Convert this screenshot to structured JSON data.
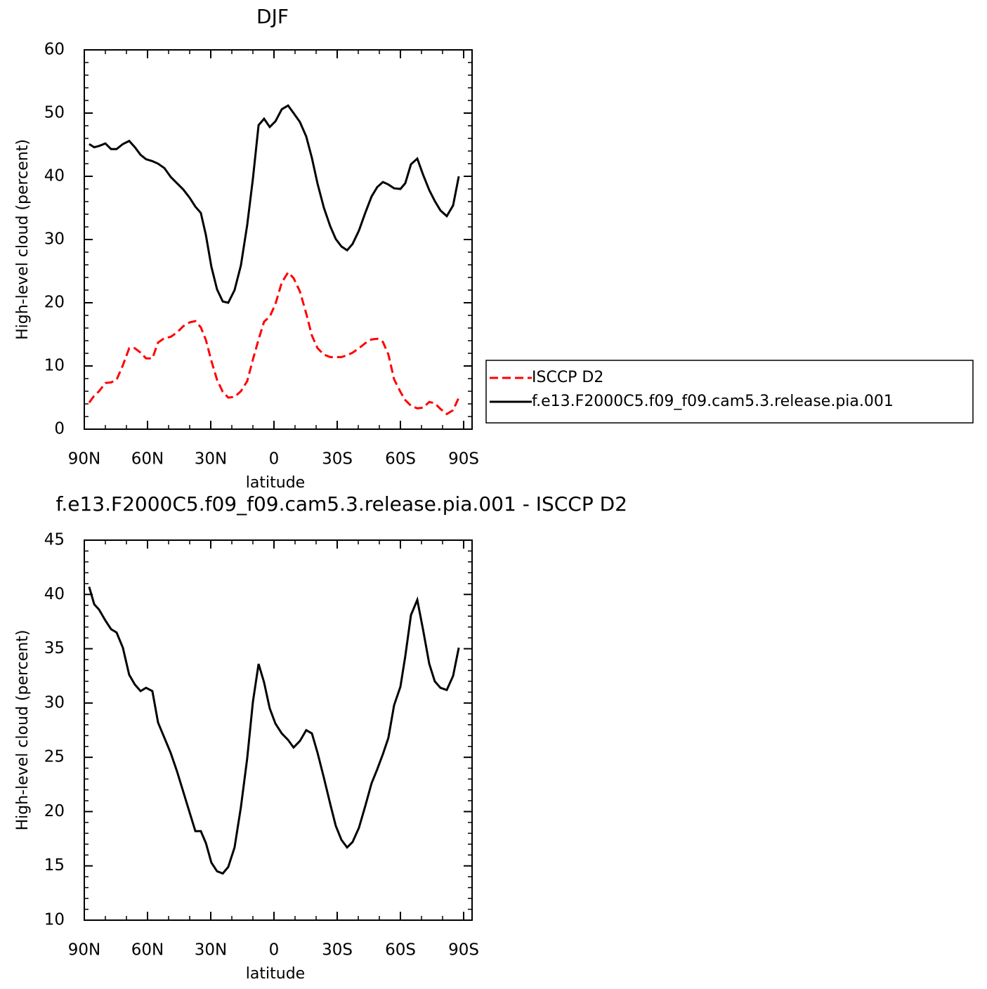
{
  "chart_data": [
    {
      "type": "line",
      "title": "DJF",
      "xlabel": "latitude",
      "ylabel": "High-level cloud (percent)",
      "x": [
        87.7,
        85.3,
        83,
        80,
        77.3,
        74.7,
        71.7,
        68.7,
        66,
        63.3,
        60.7,
        57.7,
        55,
        52,
        49,
        46,
        43,
        40,
        37.3,
        34.7,
        32.3,
        29.7,
        27,
        24.3,
        21.7,
        18.7,
        15.7,
        12.7,
        10,
        7.3,
        4.7,
        2,
        -0.7,
        -3.7,
        -6.7,
        -9.3,
        -12.3,
        -15.3,
        -18,
        -20.7,
        -23.7,
        -26.7,
        -29.3,
        -32,
        -34.7,
        -37.3,
        -40.3,
        -43.3,
        -46.3,
        -49,
        -51.7,
        -54.3,
        -57,
        -60,
        -62.3,
        -65,
        -68,
        -70.7,
        -73.7,
        -76.3,
        -79,
        -82,
        -85,
        -87.7
      ],
      "series": [
        {
          "name": "ISCCP D2",
          "color": "#ff0000",
          "dash": "dashed",
          "values": [
            4.2,
            5.3,
            6,
            7.3,
            7.4,
            7.8,
            10.1,
            12.8,
            12.8,
            12.1,
            11.2,
            11.2,
            13.7,
            14.4,
            14.6,
            15.3,
            16.3,
            16.9,
            17.1,
            16.1,
            14.1,
            10.8,
            7.8,
            5.9,
            5,
            5.1,
            6,
            7.6,
            11,
            14.2,
            17,
            17.8,
            19.8,
            23.2,
            24.8,
            23.9,
            21.8,
            18.3,
            14.8,
            12.8,
            11.8,
            11.4,
            11.4,
            11.4,
            11.7,
            12.1,
            12.8,
            13.6,
            14.2,
            14.3,
            13.8,
            11.8,
            7.9,
            5.9,
            4.6,
            3.7,
            3.3,
            3.4,
            4.3,
            4.1,
            3.2,
            2.4,
            3,
            5
          ]
        },
        {
          "name": "f.e13.F2000C5.f09_f09.cam5.3.release.pia.001",
          "color": "#000000",
          "dash": "solid",
          "values": [
            45.1,
            44.6,
            44.8,
            45.2,
            44.3,
            44.3,
            45.1,
            45.6,
            44.6,
            43.4,
            42.7,
            42.4,
            42,
            41.3,
            39.9,
            38.9,
            37.9,
            36.6,
            35.2,
            34.2,
            30.7,
            25.7,
            22.1,
            20.2,
            20,
            22,
            25.9,
            32.3,
            39.6,
            48.1,
            49.1,
            47.8,
            48.7,
            50.6,
            51.2,
            50,
            48.6,
            46.3,
            42.9,
            38.8,
            35,
            32.1,
            30.1,
            28.9,
            28.3,
            29.3,
            31.4,
            34.2,
            36.8,
            38.3,
            39.1,
            38.7,
            38.1,
            38,
            38.9,
            41.9,
            42.8,
            40.3,
            37.8,
            36.1,
            34.6,
            33.7,
            35.4,
            40
          ]
        }
      ],
      "xlim": [
        90,
        -94
      ],
      "ylim": [
        0,
        60
      ],
      "xticks": [
        {
          "value": 90,
          "label": "90N"
        },
        {
          "value": 60,
          "label": "60N"
        },
        {
          "value": 30,
          "label": "30N"
        },
        0,
        {
          "value": -30,
          "label": "30S"
        },
        {
          "value": -60,
          "label": "60S"
        },
        {
          "value": -90,
          "label": "90S"
        }
      ],
      "yticks": [
        0,
        10,
        20,
        30,
        40,
        50,
        60
      ],
      "xminorticks": [
        80,
        70,
        50,
        40,
        20,
        10,
        -10,
        -20,
        -40,
        -50,
        -70,
        -80
      ],
      "yminorticks": [
        2,
        4,
        6,
        8,
        12,
        14,
        16,
        18,
        22,
        24,
        26,
        28,
        32,
        34,
        36,
        38,
        42,
        44,
        46,
        48,
        52,
        54,
        56,
        58
      ],
      "legend": "outside-right"
    },
    {
      "type": "line",
      "title": "f.e13.F2000C5.f09_f09.cam5.3.release.pia.001 - ISCCP D2",
      "xlabel": "latitude",
      "ylabel": "High-level cloud (percent)",
      "x": [
        87.7,
        85.3,
        83,
        80,
        77.3,
        74.7,
        71.7,
        68.7,
        66,
        63.3,
        60.7,
        57.7,
        55,
        52,
        49,
        46,
        43,
        40,
        37.3,
        34.7,
        32.3,
        29.7,
        27,
        24.3,
        21.7,
        18.7,
        15.7,
        12.7,
        10,
        7.3,
        4.7,
        2,
        -0.7,
        -3.7,
        -6.7,
        -9.3,
        -12.3,
        -15.3,
        -18,
        -20.7,
        -23.7,
        -26.7,
        -29.3,
        -32,
        -34.7,
        -37.3,
        -40.3,
        -43.3,
        -46.3,
        -49,
        -51.7,
        -54.3,
        -57,
        -60,
        -62.3,
        -65,
        -68,
        -70.7,
        -73.7,
        -76.3,
        -79,
        -82,
        -85,
        -87.7
      ],
      "color": "#000000",
      "values": [
        40.7,
        39.1,
        38.6,
        37.6,
        36.8,
        36.5,
        35.1,
        32.6,
        31.7,
        31.1,
        31.4,
        31.1,
        28.2,
        26.8,
        25.4,
        23.7,
        21.8,
        19.9,
        18.2,
        18.2,
        17.1,
        15.3,
        14.5,
        14.3,
        14.9,
        16.7,
        20.4,
        24.9,
        30.1,
        33.6,
        31.9,
        29.5,
        28.1,
        27.2,
        26.6,
        25.9,
        26.5,
        27.5,
        27.2,
        25.4,
        23.1,
        20.7,
        18.7,
        17.4,
        16.7,
        17.2,
        18.5,
        20.5,
        22.6,
        23.9,
        25.3,
        26.8,
        29.8,
        31.5,
        34.3,
        38.1,
        39.5,
        36.8,
        33.6,
        32,
        31.4,
        31.2,
        32.5,
        35.1
      ],
      "xlim": [
        90,
        -94
      ],
      "ylim": [
        10,
        45
      ],
      "xticks": [
        {
          "value": 90,
          "label": "90N"
        },
        {
          "value": 60,
          "label": "60N"
        },
        {
          "value": 30,
          "label": "30N"
        },
        0,
        {
          "value": -30,
          "label": "30S"
        },
        {
          "value": -60,
          "label": "60S"
        },
        {
          "value": -90,
          "label": "90S"
        }
      ],
      "yticks": [
        10,
        15,
        20,
        25,
        30,
        35,
        40,
        45
      ],
      "xminorticks": [
        80,
        70,
        50,
        40,
        20,
        10,
        -10,
        -20,
        -40,
        -50,
        -70,
        -80
      ],
      "yminorticks": [
        11,
        12,
        13,
        14,
        16,
        17,
        18,
        19,
        21,
        22,
        23,
        24,
        26,
        27,
        28,
        29,
        31,
        32,
        33,
        34,
        36,
        37,
        38,
        39,
        41,
        42,
        43,
        44
      ]
    }
  ]
}
